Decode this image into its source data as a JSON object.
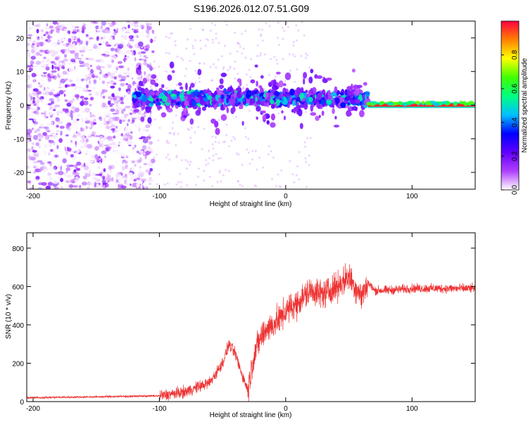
{
  "title": "S196.2026.012.07.51.G09",
  "chart_data": [
    {
      "type": "heatmap",
      "panel": "spectrogram",
      "xlabel": "Height of straight line (km)",
      "ylabel": "Frequency (Hz)",
      "xlim": [
        -205,
        150
      ],
      "ylim": [
        -25,
        25
      ],
      "xticks": [
        -200,
        -100,
        0,
        100
      ],
      "yticks": [
        -20,
        -10,
        0,
        10,
        20
      ],
      "colorbar": {
        "label": "Normalized spectral amplitude",
        "range": [
          0,
          1
        ],
        "ticks": [
          0.0,
          0.2,
          0.4,
          0.6,
          0.8
        ],
        "tick_labels": [
          "0.0",
          "0.2",
          "0.4",
          "0.6",
          "0.8"
        ],
        "colors": [
          "#ffffff",
          "#b040ff",
          "#6000ff",
          "#0000ff",
          "#00c0ff",
          "#00ff80",
          "#40ff00",
          "#ffff00",
          "#ff8000",
          "#ff0040"
        ]
      },
      "regions": [
        {
          "x_range": [
            -205,
            -105
          ],
          "description": "diffuse noise",
          "amplitude_range": [
            0.0,
            0.2
          ]
        },
        {
          "x_range": [
            -120,
            65
          ],
          "center_freq_hz": 2,
          "amplitude_range": [
            0.1,
            0.5
          ]
        },
        {
          "x_range": [
            65,
            150
          ],
          "center_freq_hz": 0,
          "amplitude_range": [
            0.6,
            1.0
          ]
        }
      ]
    },
    {
      "type": "line",
      "panel": "snr",
      "xlabel": "Height of straight line (km)",
      "ylabel": "SNR (10 * v/v)",
      "xlim": [
        -205,
        150
      ],
      "ylim": [
        0,
        880
      ],
      "xticks": [
        -200,
        -100,
        0,
        100
      ],
      "yticks": [
        0,
        200,
        400,
        600,
        800
      ],
      "series": [
        {
          "name": "SNR",
          "color": "#ee3333",
          "x": [
            -205,
            -150,
            -100,
            -80,
            -60,
            -50,
            -45,
            -40,
            -35,
            -30,
            -25,
            -20,
            -15,
            -10,
            -5,
            0,
            10,
            20,
            30,
            40,
            50,
            55,
            60,
            65,
            70,
            80,
            100,
            120,
            150
          ],
          "y": [
            20,
            25,
            30,
            50,
            100,
            200,
            300,
            250,
            150,
            60,
            250,
            330,
            380,
            400,
            430,
            470,
            520,
            580,
            560,
            600,
            650,
            600,
            550,
            620,
            580,
            580,
            590,
            590,
            590
          ]
        }
      ]
    }
  ]
}
